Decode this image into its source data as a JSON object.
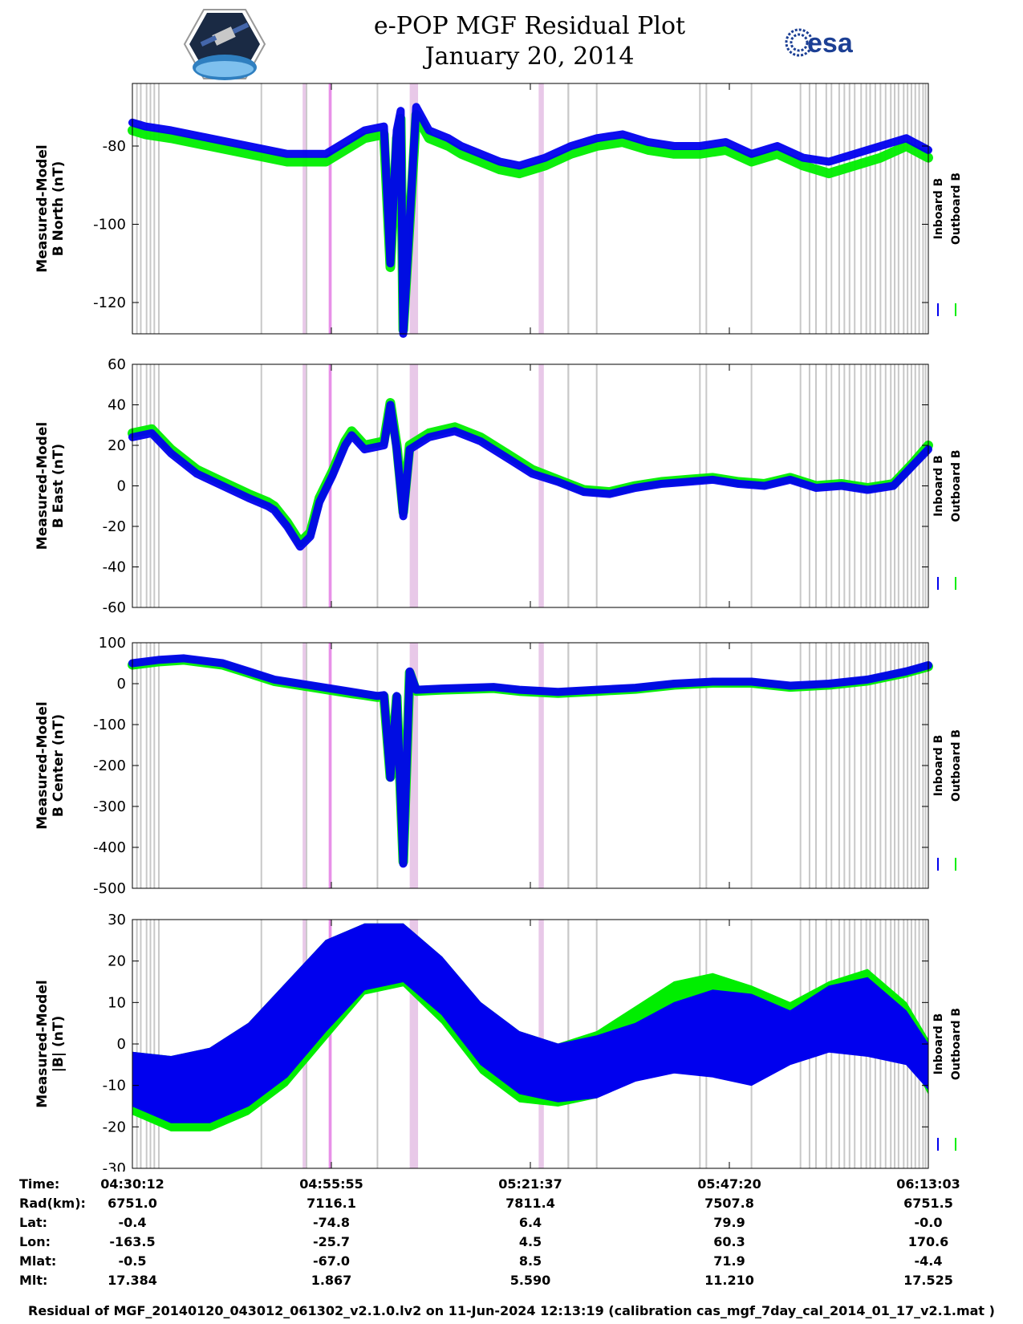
{
  "header": {
    "title_line1": "e-POP MGF Residual Plot",
    "title_line2": "January 20, 2014",
    "logo_left": "cassiope-satellite-mission-badge",
    "logo_right_text": "esa"
  },
  "colors": {
    "inboard": "#0000ee",
    "outboard": "#00ee00",
    "flag_gray": "#c8c8c8",
    "flag_pink": "#e8c8e8",
    "flag_magenta": "#e890e8"
  },
  "legend": {
    "inboard": "Inboard B",
    "outboard": "Outboard B"
  },
  "chart_data": [
    {
      "type": "line",
      "title": "",
      "ylabel": [
        "Measured-Model",
        "B North (nT)"
      ],
      "ylim": [
        -128,
        -64
      ],
      "yticks": [
        -80,
        -100,
        -120
      ],
      "xlim": [
        0,
        6171
      ],
      "series": [
        {
          "name": "Inboard B",
          "x": [
            0,
            100,
            300,
            600,
            900,
            1200,
            1500,
            1800,
            1950,
            2000,
            2050,
            2080,
            2100,
            2200,
            2300,
            2450,
            2550,
            2700,
            2850,
            3000,
            3200,
            3400,
            3600,
            3800,
            4000,
            4200,
            4400,
            4600,
            4800,
            5000,
            5200,
            5400,
            5600,
            5800,
            6000,
            6171
          ],
          "y": [
            -74,
            -75,
            -76,
            -78,
            -80,
            -82,
            -82,
            -76,
            -75,
            -110,
            -76,
            -71,
            -128,
            -70,
            -76,
            -78,
            -80,
            -82,
            -84,
            -85,
            -83,
            -80,
            -78,
            -77,
            -79,
            -80,
            -80,
            -79,
            -82,
            -80,
            -83,
            -84,
            -82,
            -80,
            -78,
            -81
          ]
        },
        {
          "name": "Outboard B",
          "x": [
            0,
            100,
            300,
            600,
            900,
            1200,
            1500,
            1800,
            1950,
            2000,
            2050,
            2080,
            2100,
            2200,
            2300,
            2450,
            2550,
            2700,
            2850,
            3000,
            3200,
            3400,
            3600,
            3800,
            4000,
            4200,
            4400,
            4600,
            4800,
            5000,
            5200,
            5400,
            5600,
            5800,
            6000,
            6171
          ],
          "y": [
            -76,
            -77,
            -78,
            -80,
            -82,
            -84,
            -84,
            -78,
            -77,
            -111,
            -78,
            -73,
            -127,
            -72,
            -78,
            -80,
            -82,
            -84,
            -86,
            -87,
            -85,
            -82,
            -80,
            -79,
            -81,
            -82,
            -82,
            -81,
            -84,
            -82,
            -85,
            -87,
            -85,
            -83,
            -80,
            -83
          ]
        }
      ]
    },
    {
      "type": "line",
      "title": "",
      "ylabel": [
        "Measured-Model",
        "B East (nT)"
      ],
      "ylim": [
        -60,
        60
      ],
      "yticks": [
        60,
        40,
        20,
        0,
        -20,
        -40,
        -60
      ],
      "xlim": [
        0,
        6171
      ],
      "series": [
        {
          "name": "Inboard B",
          "x": [
            0,
            150,
            300,
            500,
            700,
            900,
            1050,
            1100,
            1200,
            1300,
            1380,
            1450,
            1550,
            1650,
            1700,
            1800,
            1950,
            2000,
            2050,
            2100,
            2150,
            2300,
            2500,
            2700,
            2900,
            3100,
            3300,
            3500,
            3700,
            3900,
            4100,
            4300,
            4500,
            4700,
            4900,
            5100,
            5300,
            5500,
            5700,
            5900,
            6050,
            6171
          ],
          "y": [
            24,
            26,
            16,
            6,
            0,
            -6,
            -10,
            -12,
            -20,
            -30,
            -25,
            -8,
            5,
            20,
            25,
            18,
            20,
            40,
            18,
            -15,
            18,
            24,
            27,
            22,
            14,
            6,
            2,
            -3,
            -4,
            -1,
            1,
            2,
            3,
            1,
            0,
            3,
            -1,
            0,
            -2,
            0,
            10,
            18
          ]
        },
        {
          "name": "Outboard B",
          "x": [
            0,
            150,
            300,
            500,
            700,
            900,
            1050,
            1100,
            1200,
            1300,
            1380,
            1450,
            1550,
            1650,
            1700,
            1800,
            1950,
            2000,
            2050,
            2100,
            2150,
            2300,
            2500,
            2700,
            2900,
            3100,
            3300,
            3500,
            3700,
            3900,
            4100,
            4300,
            4500,
            4700,
            4900,
            5100,
            5300,
            5500,
            5700,
            5900,
            6050,
            6171
          ],
          "y": [
            26,
            28,
            18,
            8,
            2,
            -4,
            -8,
            -10,
            -18,
            -28,
            -23,
            -6,
            7,
            22,
            27,
            20,
            22,
            41,
            20,
            -13,
            20,
            26,
            29,
            24,
            16,
            8,
            3,
            -2,
            -3,
            0,
            2,
            3,
            4,
            2,
            1,
            4,
            0,
            1,
            -1,
            1,
            11,
            20
          ]
        }
      ]
    },
    {
      "type": "line",
      "title": "",
      "ylabel": [
        "Measured-Model",
        "B Center (nT)"
      ],
      "ylim": [
        -500,
        100
      ],
      "yticks": [
        100,
        0,
        -100,
        -200,
        -300,
        -400,
        -500
      ],
      "xlim": [
        0,
        6171
      ],
      "series": [
        {
          "name": "Inboard B",
          "x": [
            0,
            200,
            400,
            700,
            900,
            1100,
            1300,
            1500,
            1700,
            1800,
            1900,
            1950,
            2000,
            2050,
            2100,
            2150,
            2200,
            2400,
            2600,
            2800,
            3000,
            3300,
            3600,
            3900,
            4200,
            4500,
            4800,
            5100,
            5400,
            5700,
            6000,
            6171
          ],
          "y": [
            50,
            58,
            62,
            50,
            30,
            10,
            0,
            -10,
            -20,
            -25,
            -30,
            -28,
            -230,
            -30,
            -440,
            30,
            -15,
            -12,
            -10,
            -8,
            -15,
            -20,
            -15,
            -10,
            0,
            5,
            5,
            -5,
            0,
            10,
            30,
            45
          ]
        },
        {
          "name": "Outboard B",
          "x": [
            0,
            200,
            400,
            700,
            900,
            1100,
            1300,
            1500,
            1700,
            1800,
            1900,
            1950,
            2000,
            2050,
            2100,
            2150,
            2200,
            2400,
            2600,
            2800,
            3000,
            3300,
            3600,
            3900,
            4200,
            4500,
            4800,
            5100,
            5400,
            5700,
            6000,
            6171
          ],
          "y": [
            46,
            54,
            58,
            46,
            26,
            6,
            -4,
            -14,
            -24,
            -28,
            -33,
            -31,
            -228,
            -33,
            -435,
            27,
            -18,
            -15,
            -13,
            -11,
            -18,
            -23,
            -18,
            -13,
            -3,
            2,
            2,
            -8,
            -3,
            7,
            27,
            42
          ]
        }
      ]
    },
    {
      "type": "area",
      "title": "",
      "ylabel": [
        "Measured-Model",
        "|B| (nT)"
      ],
      "ylim": [
        -30,
        30
      ],
      "yticks": [
        30,
        20,
        10,
        0,
        -10,
        -20,
        -30
      ],
      "xlim": [
        0,
        6171
      ],
      "series": [
        {
          "name": "Inboard B",
          "x": [
            0,
            300,
            600,
            900,
            1200,
            1500,
            1800,
            2100,
            2400,
            2700,
            3000,
            3300,
            3600,
            3900,
            4200,
            4500,
            4800,
            5100,
            5400,
            5700,
            6000,
            6171
          ],
          "upper": [
            -2,
            -3,
            -1,
            5,
            15,
            25,
            29,
            29,
            21,
            10,
            3,
            0,
            2,
            5,
            10,
            13,
            12,
            8,
            14,
            16,
            8,
            0
          ],
          "lower": [
            -15,
            -19,
            -19,
            -15,
            -8,
            3,
            13,
            15,
            7,
            -5,
            -12,
            -14,
            -13,
            -9,
            -7,
            -8,
            -10,
            -5,
            -2,
            -3,
            -5,
            -11
          ]
        },
        {
          "name": "Outboard B",
          "x": [
            0,
            300,
            600,
            900,
            1200,
            1500,
            1800,
            2100,
            2400,
            2700,
            3000,
            3300,
            3600,
            3900,
            4200,
            4500,
            4800,
            5100,
            5400,
            5700,
            6000,
            6171
          ],
          "upper": [
            -2,
            -3,
            -1,
            5,
            15,
            25,
            29,
            29,
            21,
            10,
            3,
            0,
            3,
            9,
            15,
            17,
            14,
            10,
            15,
            18,
            10,
            1
          ],
          "lower": [
            -17,
            -21,
            -21,
            -17,
            -10,
            1,
            12,
            14,
            5,
            -7,
            -14,
            -15,
            -13,
            -7,
            -4,
            -2,
            -2,
            1,
            4,
            3,
            -2,
            -12
          ]
        }
      ]
    }
  ],
  "flags": {
    "gray_x": [
      35,
      65,
      110,
      140,
      170,
      205,
      1000,
      1350,
      1900,
      3380,
      3380,
      3600,
      4400,
      4450,
      4800,
      5180,
      5250,
      5300,
      5380,
      5420,
      5480,
      5520,
      5560,
      5600,
      5650,
      5690,
      5720,
      5760,
      5800,
      5840,
      5880,
      5910,
      5940,
      5980,
      6010,
      6040,
      6070,
      6100,
      6130,
      6150
    ],
    "pink_x": [
      1320,
      1335,
      2150,
      2165,
      2180,
      2195,
      2210,
      3150,
      3165,
      3180
    ],
    "magenta_x": [
      1525,
      1530,
      1540
    ]
  },
  "flag_bands": {
    "pink": [
      [
        1320,
        1345
      ],
      [
        2150,
        2215
      ],
      [
        3150,
        3190
      ]
    ],
    "magenta": [
      [
        1522,
        1545
      ]
    ]
  },
  "time_table": {
    "row_labels": [
      "Time:",
      "Rad(km):",
      "Lat:",
      "Lon:",
      "Mlat:",
      "Mlt:"
    ],
    "columns": [
      [
        "04:30:12",
        "6751.0",
        "-0.4",
        "-163.5",
        "-0.5",
        "17.384"
      ],
      [
        "04:55:55",
        "7116.1",
        "-74.8",
        "-25.7",
        "-67.0",
        "1.867"
      ],
      [
        "05:21:37",
        "7811.4",
        "6.4",
        "4.5",
        "8.5",
        "5.590"
      ],
      [
        "05:47:20",
        "7507.8",
        "79.9",
        "60.3",
        "71.9",
        "11.210"
      ],
      [
        "06:13:03",
        "6751.5",
        "-0.0",
        "170.6",
        "-4.4",
        "17.525"
      ]
    ]
  },
  "footer": "Residual of MGF_20140120_043012_061302_v2.1.0.lv2 on 11-Jun-2024 12:13:19 (calibration cas_mgf_7day_cal_2014_01_17_v2.1.mat )"
}
